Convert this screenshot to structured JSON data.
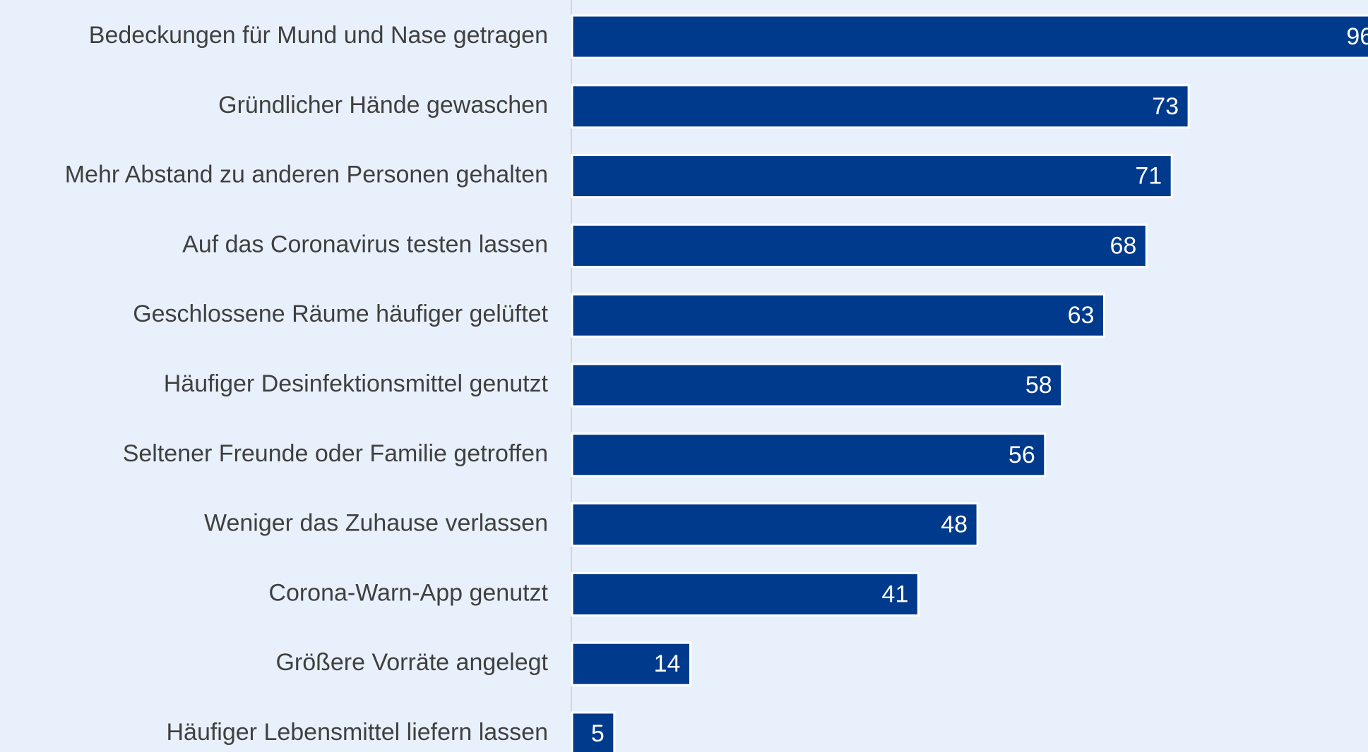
{
  "chart_data": {
    "type": "bar",
    "orientation": "horizontal",
    "categories": [
      "Bedeckungen für Mund und Nase getragen",
      "Gründlicher Hände gewaschen",
      "Mehr Abstand zu anderen Personen gehalten",
      "Auf das Coronavirus testen lassen",
      "Geschlossene Räume häufiger gelüftet",
      "Häufiger Desinfektionsmittel genutzt",
      "Seltener Freunde oder Familie getroffen",
      "Weniger das Zuhause verlassen",
      "Corona-Warn-App genutzt",
      "Größere Vorräte angelegt",
      "Häufiger Lebensmittel liefern lassen"
    ],
    "values": [
      96,
      73,
      71,
      68,
      63,
      58,
      56,
      48,
      41,
      14,
      5
    ],
    "color": "#003a8c"
  }
}
